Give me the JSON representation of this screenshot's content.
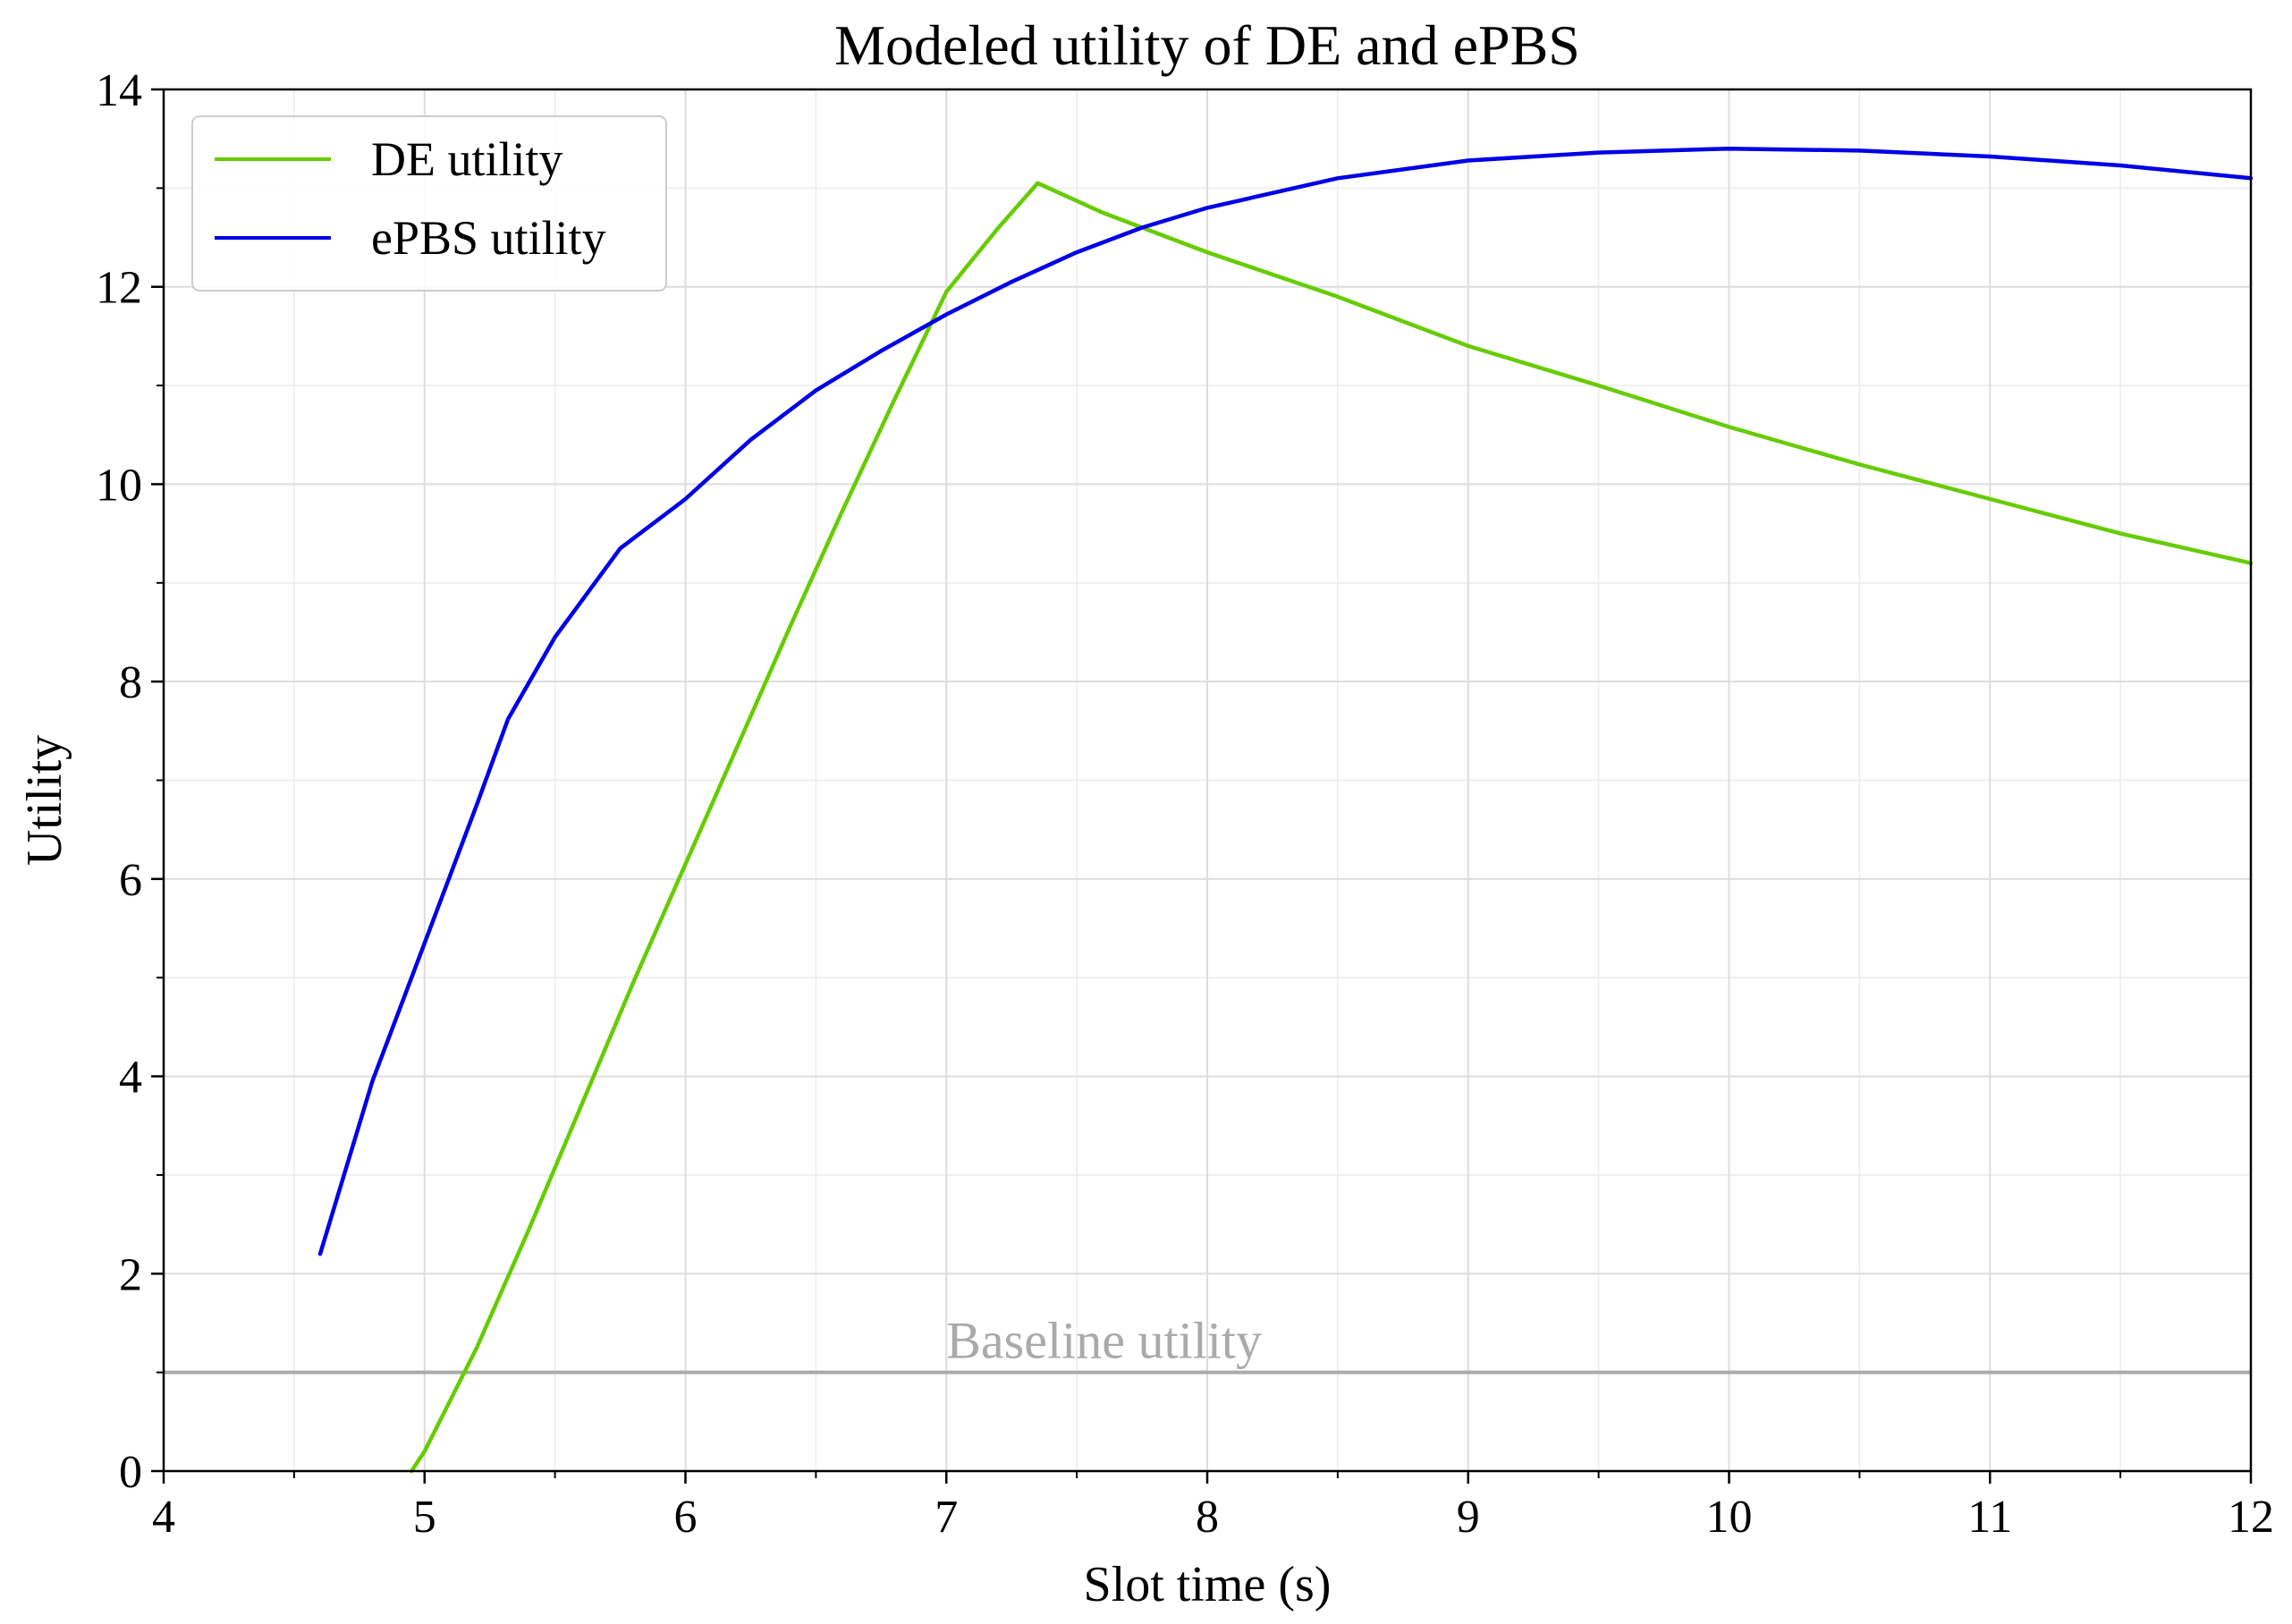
{
  "chart_data": {
    "type": "line",
    "title": "Modeled utility of DE and ePBS",
    "xlabel": "Slot time (s)",
    "ylabel": "Utility",
    "xlim": [
      4,
      12
    ],
    "ylim": [
      0,
      14
    ],
    "xticks": [
      4,
      5,
      6,
      7,
      8,
      9,
      10,
      11,
      12
    ],
    "yticks": [
      0,
      2,
      4,
      6,
      8,
      10,
      12,
      14
    ],
    "x_minor_step": 0.5,
    "y_minor_step": 1,
    "grid": true,
    "legend_position": "top-left",
    "series": [
      {
        "name": "DE utility",
        "color": "#66cc00",
        "x": [
          4.95,
          5.0,
          5.2,
          5.4,
          5.6,
          5.8,
          6.0,
          6.2,
          6.4,
          6.6,
          6.8,
          7.0,
          7.2,
          7.35,
          7.6,
          8.0,
          8.5,
          9.0,
          9.5,
          10.0,
          10.5,
          11.0,
          11.5,
          12.0
        ],
        "y": [
          0.0,
          0.2,
          1.25,
          2.45,
          3.7,
          4.95,
          6.15,
          7.35,
          8.55,
          9.72,
          10.85,
          11.95,
          12.6,
          13.05,
          12.75,
          12.35,
          11.9,
          11.4,
          11.0,
          10.58,
          10.2,
          9.85,
          9.5,
          9.2
        ]
      },
      {
        "name": "ePBS utility",
        "color": "#0000e6",
        "x": [
          4.6,
          4.8,
          5.0,
          5.2,
          5.32,
          5.5,
          5.75,
          6.0,
          6.25,
          6.5,
          6.75,
          7.0,
          7.25,
          7.5,
          7.75,
          8.0,
          8.5,
          9.0,
          9.5,
          10.0,
          10.5,
          11.0,
          11.5,
          12.0
        ],
        "y": [
          2.2,
          3.95,
          5.35,
          6.75,
          7.62,
          8.45,
          9.35,
          9.85,
          10.45,
          10.95,
          11.35,
          11.72,
          12.05,
          12.35,
          12.6,
          12.8,
          13.1,
          13.28,
          13.36,
          13.4,
          13.38,
          13.32,
          13.23,
          13.1
        ]
      }
    ],
    "reference_lines": [
      {
        "y": 1,
        "color": "#aaaaaa",
        "label": "Baseline utility",
        "label_x": 7.0
      }
    ]
  }
}
